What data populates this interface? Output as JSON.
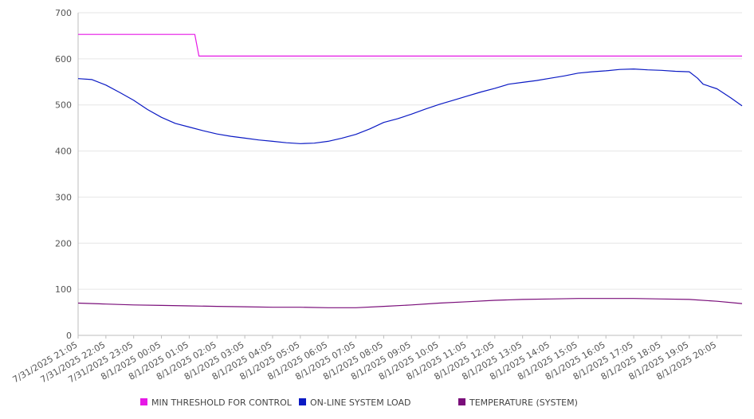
{
  "chart_data": {
    "type": "line",
    "title": "",
    "xlabel": "",
    "ylabel": "",
    "ylim": [
      0,
      700
    ],
    "yticks": [
      0,
      100,
      200,
      300,
      400,
      500,
      600,
      700
    ],
    "grid": true,
    "legend_position": "bottom",
    "x_tick_labels": [
      "7/31/2025 21:05",
      "7/31/2025 22:05",
      "7/31/2025 23:05",
      "8/1/2025 00:05",
      "8/1/2025 01:05",
      "8/1/2025 02:05",
      "8/1/2025 03:05",
      "8/1/2025 04:05",
      "8/1/2025 05:05",
      "8/1/2025 06:05",
      "8/1/2025 07:05",
      "8/1/2025 08:05",
      "8/1/2025 09:05",
      "8/1/2025 10:05",
      "8/1/2025 11:05",
      "8/1/2025 12:05",
      "8/1/2025 13:05",
      "8/1/2025 14:05",
      "8/1/2025 15:05",
      "8/1/2025 16:05",
      "8/1/2025 17:05",
      "8/1/2025 18:05",
      "8/1/2025 19:05",
      "8/1/2025 20:05"
    ],
    "x_range_hours": [
      0,
      23.9
    ],
    "series": [
      {
        "name": "MIN THRESHOLD FOR CONTROL",
        "color": "#e619e6",
        "points": [
          [
            0,
            653
          ],
          [
            4.2,
            653
          ],
          [
            4.35,
            606
          ],
          [
            23.9,
            606
          ]
        ]
      },
      {
        "name": "ON-LINE SYSTEM LOAD",
        "color": "#0b1ac4",
        "points": [
          [
            0,
            557
          ],
          [
            0.5,
            555
          ],
          [
            1,
            543
          ],
          [
            1.5,
            527
          ],
          [
            2,
            510
          ],
          [
            2.5,
            490
          ],
          [
            3,
            473
          ],
          [
            3.5,
            460
          ],
          [
            4,
            452
          ],
          [
            4.5,
            444
          ],
          [
            5,
            437
          ],
          [
            5.5,
            432
          ],
          [
            6,
            428
          ],
          [
            6.5,
            424
          ],
          [
            7,
            421
          ],
          [
            7.5,
            418
          ],
          [
            8,
            416
          ],
          [
            8.5,
            417
          ],
          [
            9,
            421
          ],
          [
            9.5,
            428
          ],
          [
            10,
            436
          ],
          [
            10.5,
            448
          ],
          [
            11,
            462
          ],
          [
            11.5,
            470
          ],
          [
            12,
            480
          ],
          [
            12.5,
            491
          ],
          [
            13,
            501
          ],
          [
            13.5,
            510
          ],
          [
            14,
            519
          ],
          [
            14.5,
            528
          ],
          [
            15,
            536
          ],
          [
            15.5,
            545
          ],
          [
            16,
            549
          ],
          [
            16.5,
            553
          ],
          [
            17,
            558
          ],
          [
            17.5,
            563
          ],
          [
            18,
            569
          ],
          [
            18.5,
            572
          ],
          [
            19,
            574
          ],
          [
            19.5,
            577
          ],
          [
            20,
            578
          ],
          [
            20.5,
            576
          ],
          [
            21,
            575
          ],
          [
            21.5,
            573
          ],
          [
            22,
            572
          ],
          [
            22.3,
            558
          ],
          [
            22.5,
            545
          ],
          [
            23,
            535
          ],
          [
            23.5,
            515
          ],
          [
            23.9,
            498
          ]
        ]
      },
      {
        "name": "TEMPERATURE (SYSTEM)",
        "color": "#7a0e7a",
        "points": [
          [
            0,
            70
          ],
          [
            1,
            68
          ],
          [
            2,
            66
          ],
          [
            3,
            65
          ],
          [
            4,
            64
          ],
          [
            5,
            63
          ],
          [
            6,
            62
          ],
          [
            7,
            61
          ],
          [
            8,
            61
          ],
          [
            9,
            60
          ],
          [
            10,
            60
          ],
          [
            11,
            63
          ],
          [
            12,
            66
          ],
          [
            13,
            70
          ],
          [
            14,
            73
          ],
          [
            15,
            76
          ],
          [
            16,
            78
          ],
          [
            17,
            79
          ],
          [
            18,
            80
          ],
          [
            19,
            80
          ],
          [
            20,
            80
          ],
          [
            21,
            79
          ],
          [
            22,
            78
          ],
          [
            23,
            74
          ],
          [
            23.9,
            69
          ]
        ]
      }
    ]
  }
}
